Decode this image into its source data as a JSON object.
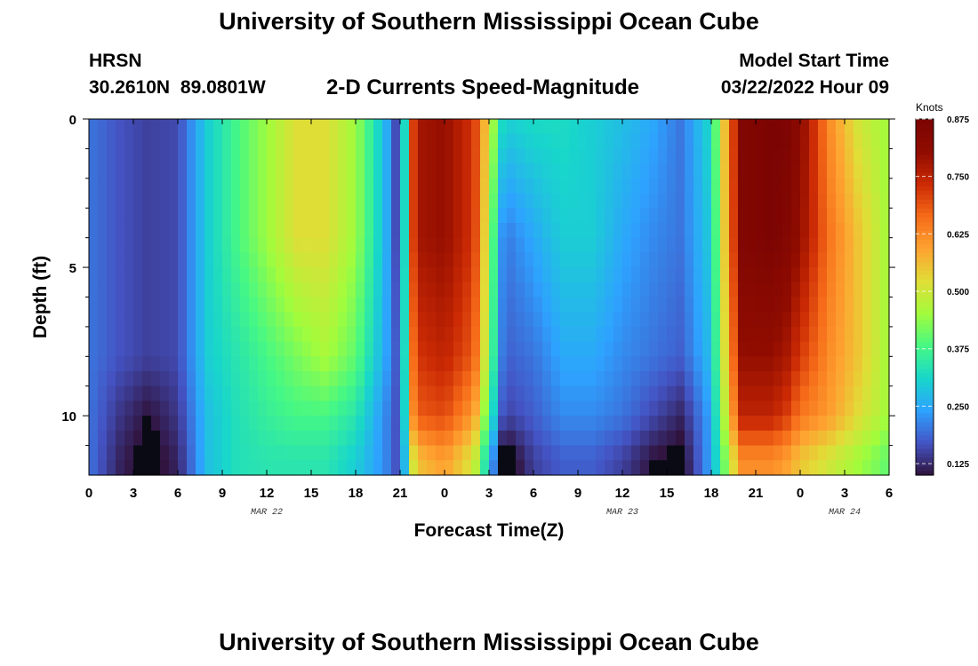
{
  "page": {
    "title": "University of Southern Mississippi Ocean Cube",
    "title_repeat": "University of Southern Mississippi Ocean Cube",
    "station": "HRSN",
    "coordinates": "30.2610N 89.0801W",
    "subtitle": "2-D Currents Speed-Magnitude",
    "model_start_label": "Model Start Time",
    "model_start_value": "03/22/2022 Hour 09"
  },
  "chart_data": {
    "type": "heatmap",
    "title": "2-D Currents Speed-Magnitude",
    "xlabel": "Forecast Time(Z)",
    "ylabel": "Depth (ft)",
    "x_tick_labels": [
      "0",
      "3",
      "6",
      "9",
      "12",
      "15",
      "18",
      "21",
      "0",
      "3",
      "6",
      "9",
      "12",
      "15",
      "18",
      "21",
      "0",
      "3",
      "6"
    ],
    "date_labels": [
      {
        "label": "MAR 22",
        "hour": 12
      },
      {
        "label": "MAR 23",
        "hour": 36
      },
      {
        "label": "MAR 24",
        "hour": 51
      }
    ],
    "y_tick_labels": [
      "0",
      "5",
      "10"
    ],
    "y_ticks": [
      0,
      5,
      10
    ],
    "xlim": [
      0,
      54
    ],
    "ylim": [
      0,
      12
    ],
    "colorbar": {
      "unit": "Knots",
      "min": 0.1,
      "max": 0.875,
      "tick_labels": [
        "0.125",
        "0.250",
        "0.375",
        "0.500",
        "0.625",
        "0.750",
        "0.875"
      ],
      "ticks": [
        0.125,
        0.25,
        0.375,
        0.5,
        0.625,
        0.75,
        0.875
      ],
      "colors": [
        "#30123b",
        "#4454c4",
        "#2ea2ff",
        "#18d6cb",
        "#46f884",
        "#a2fc3c",
        "#e1dd37",
        "#fea331",
        "#f66b19",
        "#cb2a04",
        "#900c00",
        "#7a0403"
      ]
    },
    "time_hours_sampled": [
      0,
      2,
      4,
      6,
      8,
      10,
      12,
      14,
      16,
      18,
      20,
      21,
      22,
      24,
      26,
      28,
      30,
      32,
      34,
      36,
      38,
      40,
      42,
      44,
      46,
      47,
      48,
      50,
      52,
      54
    ],
    "depth_ft_sampled": [
      0,
      4,
      8,
      10,
      11.5
    ],
    "speed_knots": {
      "depth_0": [
        0.2,
        0.17,
        0.15,
        0.16,
        0.3,
        0.38,
        0.45,
        0.52,
        0.52,
        0.45,
        0.27,
        0.12,
        0.78,
        0.8,
        0.72,
        0.3,
        0.32,
        0.32,
        0.3,
        0.28,
        0.25,
        0.2,
        0.32,
        0.85,
        0.87,
        0.87,
        0.82,
        0.62,
        0.5,
        0.45
      ],
      "depth_4": [
        0.2,
        0.17,
        0.15,
        0.16,
        0.3,
        0.38,
        0.45,
        0.52,
        0.52,
        0.45,
        0.27,
        0.12,
        0.78,
        0.8,
        0.72,
        0.2,
        0.25,
        0.3,
        0.3,
        0.25,
        0.22,
        0.2,
        0.3,
        0.85,
        0.87,
        0.85,
        0.8,
        0.65,
        0.55,
        0.45
      ],
      "depth_8": [
        0.2,
        0.17,
        0.15,
        0.16,
        0.3,
        0.34,
        0.38,
        0.42,
        0.46,
        0.4,
        0.25,
        0.15,
        0.72,
        0.75,
        0.68,
        0.18,
        0.2,
        0.25,
        0.25,
        0.22,
        0.2,
        0.18,
        0.28,
        0.8,
        0.8,
        0.78,
        0.72,
        0.62,
        0.55,
        0.45
      ],
      "depth_10": [
        0.2,
        0.14,
        0.1,
        0.14,
        0.28,
        0.33,
        0.36,
        0.38,
        0.38,
        0.34,
        0.22,
        0.15,
        0.68,
        0.7,
        0.6,
        0.15,
        0.18,
        0.22,
        0.22,
        0.2,
        0.16,
        0.12,
        0.25,
        0.75,
        0.75,
        0.72,
        0.65,
        0.6,
        0.52,
        0.45
      ],
      "depth_11_5": [
        0.2,
        0.12,
        0.08,
        0.12,
        0.28,
        0.33,
        0.34,
        0.34,
        0.34,
        0.3,
        0.22,
        0.15,
        0.55,
        0.6,
        0.5,
        0.06,
        0.15,
        0.18,
        0.18,
        0.15,
        0.1,
        0.08,
        0.25,
        0.62,
        0.62,
        0.6,
        0.55,
        0.5,
        0.45,
        0.4
      ]
    }
  }
}
